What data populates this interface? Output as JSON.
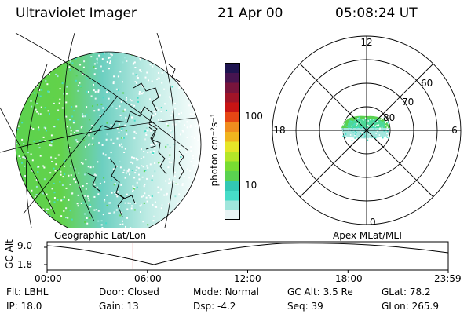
{
  "header": {
    "instrument": "Ultraviolet Imager",
    "date": "21 Apr 00",
    "time": "05:08:24 UT"
  },
  "colorbar": {
    "label": "photon cm⁻²s⁻¹",
    "ticks": [
      "100",
      "10"
    ],
    "colors": [
      "#e8f4f4",
      "#a0e6dc",
      "#46dcc8",
      "#32c8b4",
      "#5ad250",
      "#78dc32",
      "#b4e628",
      "#e6e628",
      "#f0b41e",
      "#f08c1e",
      "#e64614",
      "#c81414",
      "#a01428",
      "#78143c",
      "#461450",
      "#1e1450"
    ]
  },
  "polar": {
    "mlt_labels": [
      "12",
      "18",
      "6",
      "0"
    ],
    "lat_labels": [
      "60",
      "70",
      "80"
    ]
  },
  "altitude_plot": {
    "left_title": "Geographic Lat/Lon",
    "right_title": "Apex MLat/MLT",
    "ylabel": "GC Alt",
    "yticks": [
      "9.0",
      "1.8"
    ],
    "xticks": [
      "00:00",
      "06:00",
      "12:00",
      "18:00",
      "23:59"
    ],
    "marker_color": "#cc2222"
  },
  "info": {
    "row1": [
      {
        "key": "Flt:",
        "val": "LBHL"
      },
      {
        "key": "Door:",
        "val": "Closed"
      },
      {
        "key": "Mode:",
        "val": "Normal"
      },
      {
        "key": "GC Alt:",
        "val": "3.5 Re"
      },
      {
        "key": "GLat:",
        "val": "78.2"
      }
    ],
    "row2": [
      {
        "key": "IP:",
        "val": "18.0"
      },
      {
        "key": "Gain:",
        "val": "13"
      },
      {
        "key": "Dsp:",
        "val": "-4.2"
      },
      {
        "key": "Seq:",
        "val": "39"
      },
      {
        "key": "GLon:",
        "val": "265.9"
      }
    ]
  }
}
